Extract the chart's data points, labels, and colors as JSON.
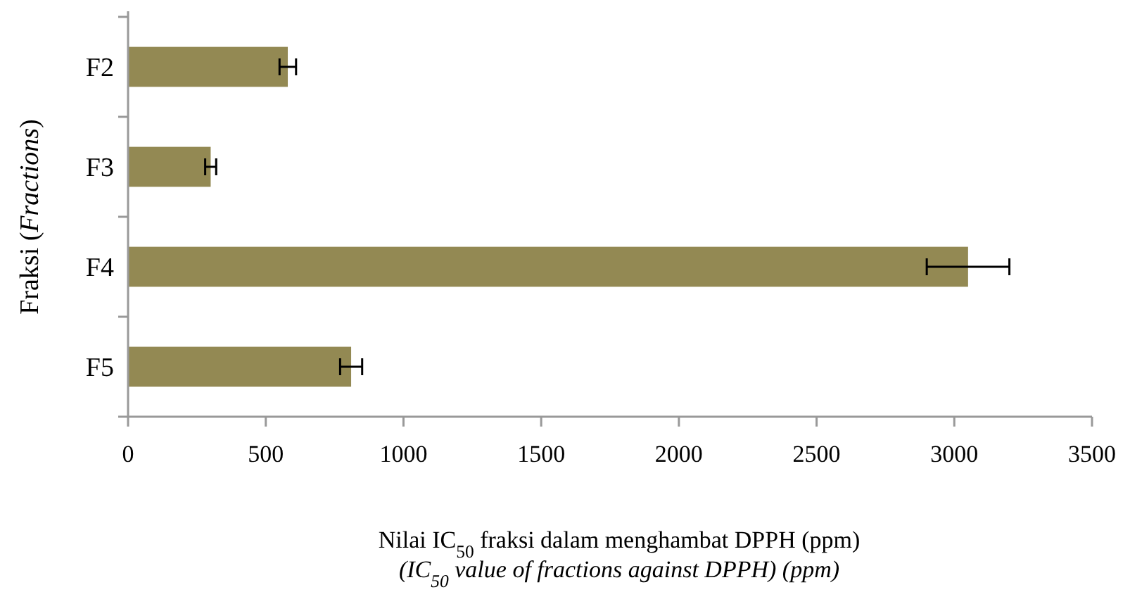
{
  "chart_data": {
    "type": "bar",
    "orientation": "horizontal",
    "categories": [
      "F2",
      "F3",
      "F4",
      "F5"
    ],
    "values": [
      580,
      300,
      3050,
      810
    ],
    "errors": [
      30,
      20,
      150,
      40
    ],
    "color": "#938953",
    "xlim": [
      0,
      3500
    ],
    "xticks": [
      0,
      500,
      1000,
      1500,
      2000,
      2500,
      3000,
      3500
    ],
    "xlabel": "Nilai IC$_{50}$ fraksi dalam menghambat DPPH (ppm)\n(IC$_{50}$ value of fractions against DPPH) (ppm)",
    "ylabel": "Fraksi (Fractions)",
    "grid": false
  }
}
